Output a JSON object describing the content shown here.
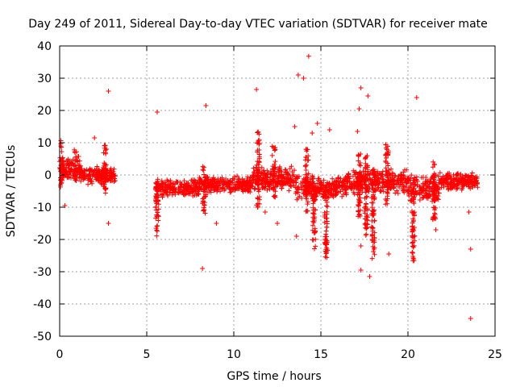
{
  "chart_data": {
    "type": "scatter",
    "title": "Day 249 of 2011, Sidereal Day-to-day VTEC variation (SDTVAR) for receiver mate",
    "xlabel": "GPS time / hours",
    "ylabel": "SDTVAR / TECUs",
    "xlim": [
      0,
      25
    ],
    "ylim": [
      -50,
      40
    ],
    "x_ticks": [
      0,
      5,
      10,
      15,
      20,
      25
    ],
    "x_tick_labels": [
      "0",
      "5",
      "10",
      "15",
      "20",
      "25"
    ],
    "y_ticks": [
      -50,
      -40,
      -30,
      -20,
      -10,
      0,
      10,
      20,
      30,
      40
    ],
    "y_tick_labels": [
      "-50",
      "-40",
      "-30",
      "-20",
      "-10",
      "0",
      "10",
      "20",
      "30",
      "40"
    ],
    "grid": true,
    "marker": "+",
    "color": "#ff0000",
    "dense_bands": [
      {
        "x_start": 0.0,
        "x_end": 1.2,
        "y_center": 2,
        "y_spread": 4
      },
      {
        "x_start": 1.2,
        "x_end": 3.2,
        "y_center": 0,
        "y_spread": 3
      },
      {
        "x_start": 5.5,
        "x_end": 8.0,
        "y_center": -4,
        "y_spread": 3
      },
      {
        "x_start": 8.0,
        "x_end": 11.0,
        "y_center": -3,
        "y_spread": 3
      },
      {
        "x_start": 11.0,
        "x_end": 13.5,
        "y_center": -1,
        "y_spread": 4
      },
      {
        "x_start": 13.5,
        "x_end": 16.5,
        "y_center": -4,
        "y_spread": 4
      },
      {
        "x_start": 16.5,
        "x_end": 20.0,
        "y_center": -2,
        "y_spread": 4
      },
      {
        "x_start": 20.0,
        "x_end": 21.8,
        "y_center": -4,
        "y_spread": 5
      },
      {
        "x_start": 21.8,
        "x_end": 24.0,
        "y_center": -2,
        "y_spread": 3
      }
    ],
    "vertical_streaks": [
      {
        "x": 0.1,
        "y_min": -4,
        "y_max": 11
      },
      {
        "x": 0.9,
        "y_min": -2,
        "y_max": 8
      },
      {
        "x": 2.6,
        "y_min": -6,
        "y_max": 11
      },
      {
        "x": 5.6,
        "y_min": -20,
        "y_max": -2
      },
      {
        "x": 8.3,
        "y_min": -12,
        "y_max": 3
      },
      {
        "x": 11.4,
        "y_min": -10,
        "y_max": 14
      },
      {
        "x": 12.3,
        "y_min": -7,
        "y_max": 9
      },
      {
        "x": 14.2,
        "y_min": -12,
        "y_max": 8
      },
      {
        "x": 14.6,
        "y_min": -24,
        "y_max": -3
      },
      {
        "x": 15.3,
        "y_min": -26,
        "y_max": -5
      },
      {
        "x": 17.2,
        "y_min": -13,
        "y_max": 7
      },
      {
        "x": 17.6,
        "y_min": -19,
        "y_max": 6
      },
      {
        "x": 18.0,
        "y_min": -26,
        "y_max": 2
      },
      {
        "x": 18.8,
        "y_min": -10,
        "y_max": 10
      },
      {
        "x": 20.3,
        "y_min": -27,
        "y_max": -4
      },
      {
        "x": 21.5,
        "y_min": -14,
        "y_max": 5
      }
    ],
    "outliers": [
      {
        "x": 0.3,
        "y": -9.5
      },
      {
        "x": 2.0,
        "y": 11.5
      },
      {
        "x": 2.8,
        "y": 26
      },
      {
        "x": 2.8,
        "y": -15
      },
      {
        "x": 5.6,
        "y": 19.5
      },
      {
        "x": 8.4,
        "y": 21.5
      },
      {
        "x": 8.2,
        "y": -29
      },
      {
        "x": 9.0,
        "y": -15
      },
      {
        "x": 11.3,
        "y": 26.5
      },
      {
        "x": 11.8,
        "y": -11.5
      },
      {
        "x": 12.5,
        "y": -15
      },
      {
        "x": 13.5,
        "y": 15
      },
      {
        "x": 13.7,
        "y": 31
      },
      {
        "x": 14.0,
        "y": 30
      },
      {
        "x": 14.3,
        "y": 36.8
      },
      {
        "x": 14.5,
        "y": 13
      },
      {
        "x": 13.6,
        "y": -19
      },
      {
        "x": 14.8,
        "y": 16
      },
      {
        "x": 15.5,
        "y": 14
      },
      {
        "x": 17.2,
        "y": 20.5
      },
      {
        "x": 17.3,
        "y": 27
      },
      {
        "x": 17.7,
        "y": 24.5
      },
      {
        "x": 17.1,
        "y": 13.5
      },
      {
        "x": 17.3,
        "y": -22
      },
      {
        "x": 17.3,
        "y": -29.5
      },
      {
        "x": 17.8,
        "y": -31.5
      },
      {
        "x": 18.9,
        "y": -24.5
      },
      {
        "x": 20.5,
        "y": 24
      },
      {
        "x": 21.6,
        "y": -17
      },
      {
        "x": 23.5,
        "y": -11.5
      },
      {
        "x": 23.6,
        "y": -23
      },
      {
        "x": 23.6,
        "y": -44.5
      }
    ]
  }
}
